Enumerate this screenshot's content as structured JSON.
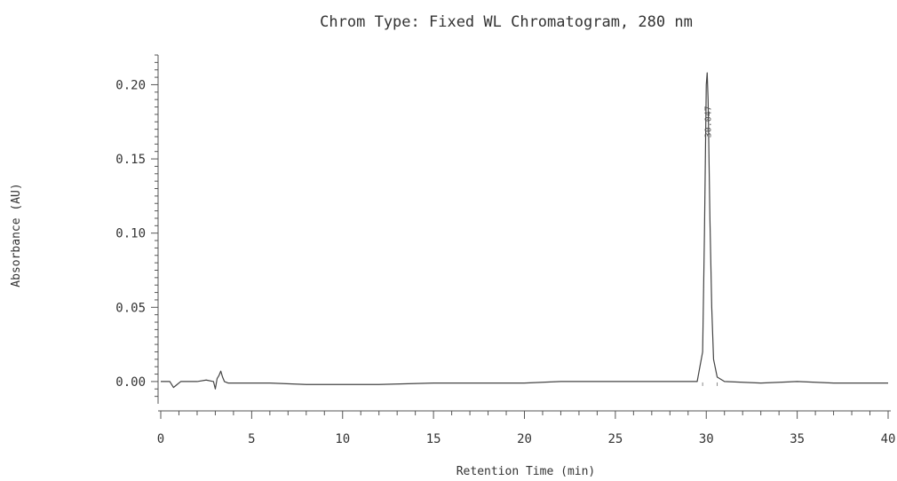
{
  "chart_data": {
    "type": "line",
    "title": "Chrom Type: Fixed WL Chromatogram, 280 nm",
    "xlabel": "Retention Time (min)",
    "ylabel": "Absorbance (AU)",
    "xlim": [
      0,
      40
    ],
    "ylim": [
      -0.015,
      0.22
    ],
    "x_ticks": [
      0,
      5,
      10,
      15,
      20,
      25,
      30,
      35,
      40
    ],
    "x_tick_labels": [
      "0",
      "5",
      "10",
      "15",
      "20",
      "25",
      "30",
      "35",
      "40"
    ],
    "y_ticks": [
      0.0,
      0.05,
      0.1,
      0.15,
      0.2
    ],
    "y_tick_labels": [
      "0.00",
      "0.05",
      "0.10",
      "0.15",
      "0.20"
    ],
    "grid": false,
    "series": [
      {
        "x": [
          0,
          0.5,
          0.7,
          0.9,
          1.1,
          1.5,
          2.0,
          2.5,
          2.9,
          3.0,
          3.1,
          3.2,
          3.3,
          3.4,
          3.5,
          3.7,
          4.0,
          6,
          8,
          10,
          12,
          15,
          18,
          20,
          22,
          25,
          28,
          29.5,
          29.8,
          29.9,
          30.0,
          30.05,
          30.1,
          30.2,
          30.3,
          30.4,
          30.6,
          31.0,
          33,
          35,
          37,
          40
        ],
        "y": [
          0.0,
          0.0,
          -0.004,
          -0.002,
          0.0,
          0.0,
          0.0,
          0.001,
          0.0,
          -0.005,
          0.002,
          0.004,
          0.007,
          0.003,
          0.0,
          -0.001,
          -0.001,
          -0.001,
          -0.002,
          -0.002,
          -0.002,
          -0.001,
          -0.001,
          -0.001,
          0.0,
          0.0,
          0.0,
          0.0,
          0.02,
          0.1,
          0.2,
          0.208,
          0.19,
          0.11,
          0.05,
          0.015,
          0.003,
          0.0,
          -0.001,
          0.0,
          -0.001,
          -0.001
        ],
        "color": "#444444"
      }
    ],
    "annotations": [
      {
        "text": "30.047",
        "x": 30.05,
        "y": 0.175
      }
    ]
  }
}
